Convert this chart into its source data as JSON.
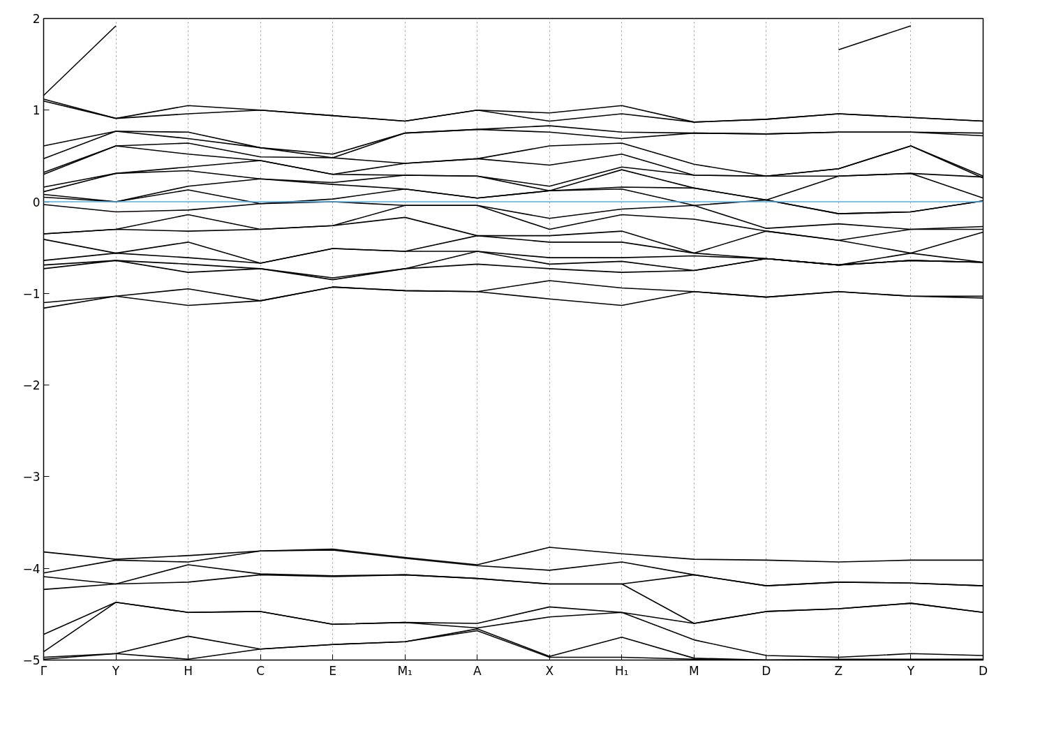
{
  "chart_data": {
    "type": "line",
    "categories": [
      "Γ",
      "Y",
      "H",
      "C",
      "E",
      "M₁",
      "A",
      "X",
      "H₁",
      "M",
      "D",
      "Z",
      "Y",
      "D"
    ],
    "ylim": [
      -5,
      2
    ],
    "yticks": [
      -5,
      -4,
      -3,
      -2,
      -1,
      0,
      1,
      2
    ],
    "grid": "x",
    "ref_lines": [
      {
        "axis": "y",
        "value": 0,
        "color": "#4ab0e6"
      }
    ],
    "series": [
      {
        "color": "#000000",
        "values": [
          1.16,
          1.92,
          null,
          null,
          null,
          null,
          null,
          null,
          null,
          null,
          null,
          null,
          null,
          null
        ]
      },
      {
        "color": "#000000",
        "values": [
          null,
          null,
          null,
          null,
          null,
          null,
          null,
          null,
          null,
          null,
          null,
          1.66,
          1.92,
          null
        ]
      },
      {
        "color": "#000000",
        "values": [
          1.12,
          0.91,
          1.05,
          1.0,
          0.94,
          0.88,
          1.0,
          0.97,
          1.05,
          0.87,
          0.9,
          0.96,
          0.92,
          0.88
        ]
      },
      {
        "color": "#000000",
        "values": [
          1.1,
          0.91,
          0.96,
          1.0,
          0.94,
          0.88,
          1.0,
          0.88,
          0.96,
          0.87,
          0.9,
          0.96,
          0.92,
          0.88
        ]
      },
      {
        "color": "#000000",
        "values": [
          0.61,
          0.77,
          0.76,
          0.59,
          0.52,
          0.75,
          0.79,
          0.83,
          0.76,
          0.75,
          0.74,
          0.76,
          0.76,
          0.75
        ]
      },
      {
        "color": "#000000",
        "values": [
          0.47,
          0.77,
          0.69,
          0.59,
          0.48,
          0.75,
          0.79,
          0.76,
          0.69,
          0.75,
          0.74,
          0.76,
          0.76,
          0.72
        ]
      },
      {
        "color": "#000000",
        "values": [
          0.32,
          0.61,
          0.64,
          0.49,
          0.48,
          0.42,
          0.47,
          0.61,
          0.64,
          0.41,
          0.28,
          0.36,
          0.61,
          0.28
        ]
      },
      {
        "color": "#000000",
        "values": [
          0.3,
          0.61,
          0.52,
          0.45,
          0.3,
          0.42,
          0.47,
          0.4,
          0.52,
          0.29,
          0.28,
          0.36,
          0.61,
          0.26
        ]
      },
      {
        "color": "#000000",
        "values": [
          0.16,
          0.31,
          0.38,
          0.45,
          0.3,
          0.29,
          0.28,
          0.17,
          0.38,
          0.29,
          0.28,
          0.28,
          0.31,
          0.27
        ]
      },
      {
        "color": "#000000",
        "values": [
          0.11,
          0.31,
          0.34,
          0.25,
          0.21,
          0.29,
          0.28,
          0.12,
          0.35,
          0.15,
          0.02,
          0.28,
          0.31,
          0.04
        ]
      },
      {
        "color": "#000000",
        "values": [
          0.08,
          0.0,
          0.17,
          0.25,
          0.19,
          0.14,
          0.04,
          0.12,
          0.16,
          0.15,
          0.02,
          -0.13,
          -0.11,
          0.01
        ]
      },
      {
        "color": "#000000",
        "values": [
          0.05,
          0.0,
          0.13,
          -0.02,
          0.03,
          0.14,
          0.04,
          0.12,
          0.14,
          -0.04,
          0.02,
          -0.13,
          -0.11,
          0.01
        ]
      },
      {
        "color": "#000000",
        "values": [
          -0.03,
          -0.11,
          -0.09,
          -0.02,
          0.0,
          -0.04,
          -0.04,
          -0.18,
          -0.08,
          -0.04,
          -0.29,
          -0.24,
          -0.3,
          -0.27
        ]
      },
      {
        "color": "#000000",
        "values": [
          -0.35,
          -0.3,
          -0.14,
          -0.3,
          -0.26,
          -0.04,
          -0.04,
          -0.3,
          -0.14,
          -0.19,
          -0.32,
          -0.42,
          -0.3,
          -0.3
        ]
      },
      {
        "color": "#000000",
        "values": [
          -0.35,
          -0.3,
          -0.32,
          -0.3,
          -0.26,
          -0.17,
          -0.37,
          -0.37,
          -0.32,
          -0.56,
          -0.32,
          -0.42,
          -0.56,
          -0.33
        ]
      },
      {
        "color": "#000000",
        "values": [
          -0.41,
          -0.56,
          -0.44,
          -0.67,
          -0.51,
          -0.54,
          -0.37,
          -0.44,
          -0.44,
          -0.56,
          -0.62,
          -0.69,
          -0.56,
          -0.66
        ]
      },
      {
        "color": "#000000",
        "values": [
          -0.64,
          -0.56,
          -0.61,
          -0.67,
          -0.51,
          -0.54,
          -0.54,
          -0.61,
          -0.61,
          -0.59,
          -0.62,
          -0.69,
          -0.64,
          -0.66
        ]
      },
      {
        "color": "#000000",
        "values": [
          -0.69,
          -0.64,
          -0.68,
          -0.73,
          -0.83,
          -0.73,
          -0.54,
          -0.68,
          -0.65,
          -0.75,
          -0.62,
          -0.69,
          -0.64,
          -0.66
        ]
      },
      {
        "color": "#000000",
        "values": [
          -0.73,
          -0.64,
          -0.77,
          -0.73,
          -0.85,
          -0.73,
          -0.68,
          -0.73,
          -0.77,
          -0.75,
          -0.62,
          -0.69,
          -0.64,
          -0.66
        ]
      },
      {
        "color": "#000000",
        "values": [
          -1.1,
          -1.03,
          -0.95,
          -1.08,
          -0.93,
          -0.97,
          -0.98,
          -0.86,
          -0.94,
          -0.98,
          -1.04,
          -0.98,
          -1.03,
          -1.03
        ]
      },
      {
        "color": "#000000",
        "values": [
          -1.16,
          -1.03,
          -1.13,
          -1.08,
          -0.93,
          -0.97,
          -0.98,
          -1.06,
          -1.13,
          -0.98,
          -1.04,
          -0.98,
          -1.03,
          -1.05
        ]
      },
      {
        "color": "#000000",
        "values": [
          -3.82,
          -3.9,
          -3.86,
          -3.81,
          -3.79,
          -3.88,
          -3.96,
          -3.77,
          -3.84,
          -3.9,
          -3.91,
          -3.93,
          -3.91,
          -3.91
        ]
      },
      {
        "color": "#000000",
        "values": [
          -4.05,
          -3.91,
          -3.93,
          -3.81,
          -3.8,
          -3.89,
          -3.97,
          -4.02,
          -3.93,
          -4.07,
          -4.19,
          -4.15,
          -4.16,
          -4.19
        ]
      },
      {
        "color": "#000000",
        "values": [
          -4.09,
          -4.17,
          -3.96,
          -4.06,
          -4.08,
          -4.07,
          -4.11,
          -4.17,
          -4.17,
          -4.07,
          -4.19,
          -4.15,
          -4.16,
          -4.19
        ]
      },
      {
        "color": "#000000",
        "values": [
          -4.23,
          -4.17,
          -4.15,
          -4.07,
          -4.09,
          -4.07,
          -4.11,
          -4.17,
          -4.17,
          -4.6,
          -4.47,
          -4.44,
          -4.38,
          -4.48
        ]
      },
      {
        "color": "#000000",
        "values": [
          -4.72,
          -4.37,
          -4.48,
          -4.47,
          -4.61,
          -4.59,
          -4.6,
          -4.42,
          -4.48,
          -4.6,
          -4.47,
          -4.44,
          -4.38,
          -4.48
        ]
      },
      {
        "color": "#000000",
        "values": [
          -4.91,
          -4.37,
          -4.48,
          -4.47,
          -4.61,
          -4.59,
          -4.65,
          -4.53,
          -4.48,
          -4.78,
          -4.95,
          -4.97,
          -4.93,
          -4.95
        ]
      },
      {
        "color": "#000000",
        "values": [
          -4.97,
          -4.93,
          -4.74,
          -4.88,
          -4.83,
          -4.8,
          -4.66,
          -4.96,
          -4.75,
          -4.98,
          -5.0,
          -4.99,
          -4.99,
          -4.99
        ]
      },
      {
        "color": "#000000",
        "values": [
          -4.99,
          -4.93,
          -4.99,
          -4.88,
          -4.83,
          -4.8,
          -4.68,
          -4.97,
          -4.97,
          -4.99,
          -5.0,
          -5.0,
          -5.0,
          -5.0
        ]
      }
    ]
  }
}
